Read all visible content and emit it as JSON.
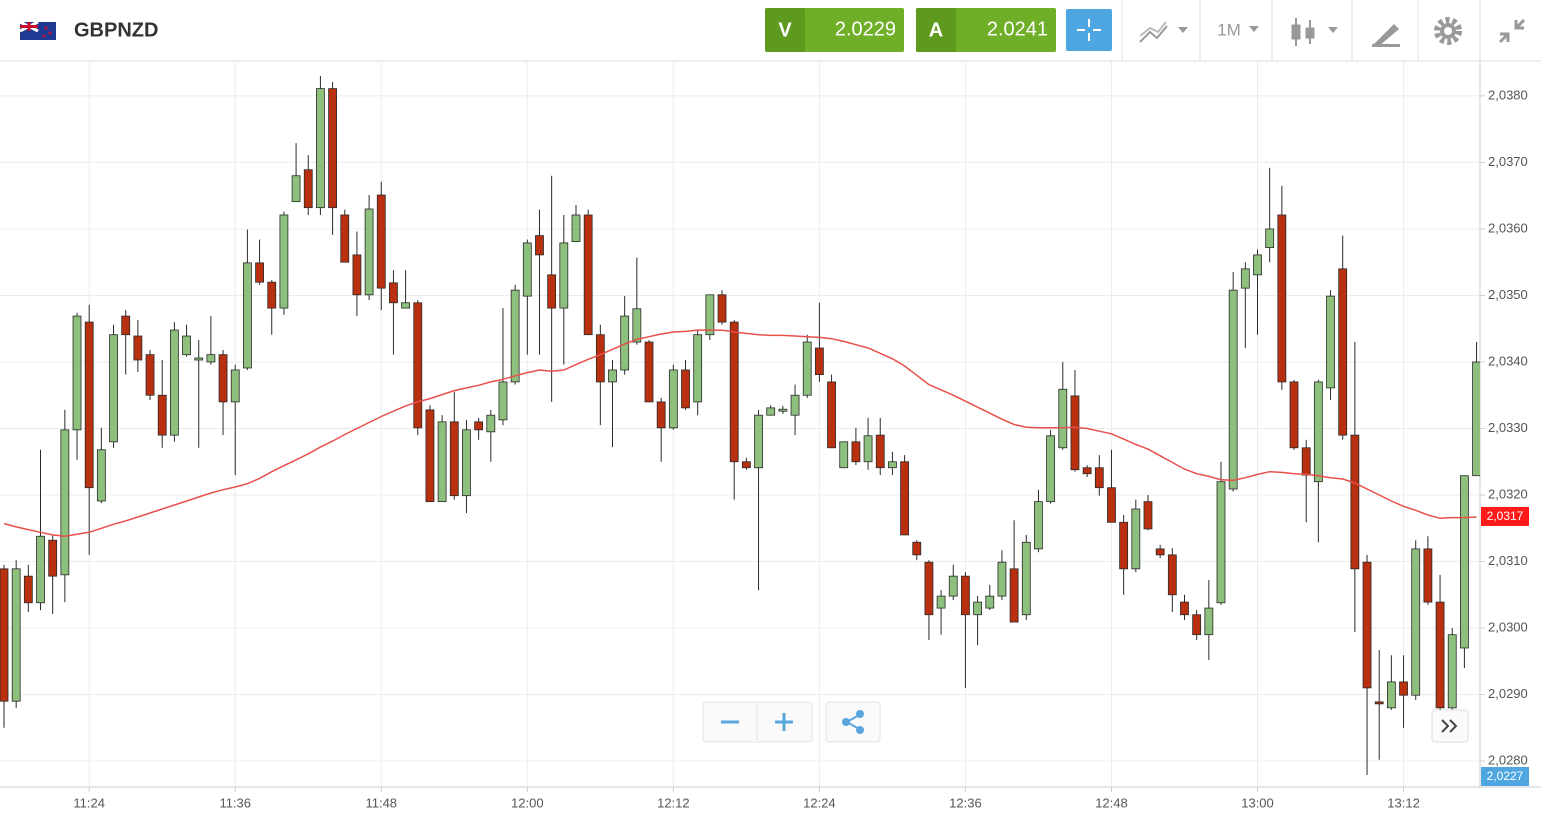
{
  "header": {
    "symbol": "GBPNZD",
    "sell_label": "V",
    "sell_price": "2.0229",
    "buy_label": "A",
    "buy_price": "2.0241",
    "timeframe": "1M"
  },
  "chart_data": {
    "type": "candlestick",
    "categories": [
      null,
      null,
      null,
      null,
      null,
      null,
      null,
      "11:24",
      null,
      null,
      null,
      null,
      null,
      null,
      null,
      null,
      null,
      null,
      null,
      "11:36",
      null,
      null,
      null,
      null,
      null,
      null,
      null,
      null,
      null,
      null,
      null,
      "11:48",
      null,
      null,
      null,
      null,
      null,
      null,
      null,
      null,
      null,
      null,
      null,
      "12:00",
      null,
      null,
      null,
      null,
      null,
      null,
      null,
      null,
      null,
      null,
      null,
      "12:12",
      null,
      null,
      null,
      null,
      null,
      null,
      null,
      null,
      null,
      null,
      null,
      "12:24",
      null,
      null,
      null,
      null,
      null,
      null,
      null,
      null,
      null,
      null,
      null,
      "12:36",
      null,
      null,
      null,
      null,
      null,
      null,
      null,
      null,
      null,
      null,
      null,
      "12:48",
      null,
      null,
      null,
      null,
      null,
      null,
      null,
      null,
      null,
      null,
      null,
      "13:00",
      null,
      null,
      null,
      null,
      null,
      null,
      null,
      null,
      null,
      null,
      null,
      "13:12",
      null,
      null,
      null,
      null,
      null,
      null
    ],
    "open": [
      2.03089,
      2.0289,
      2.03078,
      2.03038,
      2.03132,
      2.0308,
      2.03298,
      2.0346,
      2.03191,
      2.0328,
      2.03469,
      2.03439,
      2.03411,
      2.0335,
      2.0329,
      2.03411,
      2.03403,
      2.034,
      2.03411,
      2.0334,
      2.03391,
      2.03549,
      2.0352,
      2.03481,
      2.03641,
      2.03689,
      2.03632,
      2.03811,
      2.03621,
      2.03561,
      2.03501,
      2.03651,
      2.03519,
      2.03481,
      2.03489,
      2.03328,
      2.0319,
      2.0331,
      2.03199,
      2.0331,
      2.03295,
      2.03313,
      2.0337,
      2.03499,
      2.0359,
      2.03531,
      2.03481,
      2.03581,
      2.03621,
      2.03441,
      2.0337,
      2.03388,
      2.0343,
      2.0343,
      2.0334,
      2.03301,
      2.03388,
      2.0334,
      2.03441,
      2.03501,
      2.0346,
      2.0325,
      2.03241,
      2.0332,
      2.03326,
      2.0332,
      2.0335,
      2.03421,
      2.0337,
      2.03241,
      2.0328,
      2.0325,
      2.0329,
      2.03241,
      2.0325,
      2.03129,
      2.03099,
      2.0303,
      2.03048,
      2.03078,
      2.0302,
      2.0303,
      2.03048,
      2.03089,
      2.0302,
      2.03119,
      2.0319,
      2.03271,
      2.03349,
      2.03241,
      2.03241,
      2.03211,
      2.03159,
      2.03089,
      2.0319,
      2.03119,
      2.0311,
      2.03039,
      2.0302,
      2.0299,
      2.03038,
      2.03209,
      2.03511,
      2.03531,
      2.03572,
      2.03621,
      2.0337,
      2.03271,
      2.0322,
      2.03361,
      2.0354,
      2.0329,
      2.03099,
      2.02889,
      2.0288,
      2.02919,
      2.02899,
      2.03119,
      2.03039,
      2.0288,
      2.0297,
      2.03229
    ],
    "high": [
      2.03095,
      2.03102,
      2.03095,
      2.03268,
      2.0314,
      2.03328,
      2.03474,
      2.03486,
      2.03301,
      2.03456,
      2.03478,
      2.03463,
      2.03418,
      2.03403,
      2.0346,
      2.03456,
      2.03433,
      2.03469,
      2.03418,
      2.03396,
      2.03599,
      2.03584,
      2.03523,
      2.03626,
      2.03729,
      2.03711,
      2.0383,
      2.03821,
      2.03629,
      2.03596,
      2.03651,
      2.03671,
      2.03538,
      2.03538,
      2.03493,
      2.03335,
      2.0332,
      2.03355,
      2.03313,
      2.03316,
      2.03328,
      2.03481,
      2.03516,
      2.03584,
      2.03629,
      2.0368,
      2.03621,
      2.03636,
      2.03629,
      2.03456,
      2.03403,
      2.03499,
      2.03557,
      2.03433,
      2.03346,
      2.03396,
      2.03403,
      2.03448,
      2.03501,
      2.03508,
      2.03463,
      2.03256,
      2.03328,
      2.03335,
      2.03334,
      2.03366,
      2.03441,
      2.03489,
      2.03381,
      2.0328,
      2.03301,
      2.03316,
      2.03316,
      2.03265,
      2.0326,
      2.03132,
      2.03102,
      2.03057,
      2.03095,
      2.03084,
      2.03048,
      2.03065,
      2.03117,
      2.03162,
      2.0314,
      2.03208,
      2.03298,
      2.034,
      2.03388,
      2.03245,
      2.0326,
      2.03268,
      2.0317,
      2.03193,
      2.032,
      2.03125,
      2.0312,
      2.0305,
      2.03027,
      2.03072,
      2.0325,
      2.03535,
      2.0355,
      2.03569,
      2.03692,
      2.03665,
      2.03373,
      2.03283,
      2.03373,
      2.03508,
      2.0359,
      2.0343,
      2.0311,
      2.02967,
      2.02959,
      2.02959,
      2.03132,
      2.03138,
      2.0308,
      2.03,
      2.03229,
      2.0343
    ],
    "low": [
      2.0285,
      2.0288,
      2.03024,
      2.03027,
      2.03021,
      2.03039,
      2.03253,
      2.0311,
      2.03188,
      2.03271,
      2.03381,
      2.03385,
      2.03343,
      2.03271,
      2.0328,
      2.03408,
      2.03271,
      2.03396,
      2.0329,
      2.0323,
      2.03388,
      2.03516,
      2.03441,
      2.03471,
      2.03641,
      2.03621,
      2.03621,
      2.03591,
      2.0355,
      2.03469,
      2.03493,
      2.03478,
      2.03411,
      2.03481,
      2.0329,
      2.0319,
      2.0319,
      2.03193,
      2.03173,
      2.03283,
      2.0325,
      2.03305,
      2.03366,
      2.03411,
      2.03411,
      2.0334,
      2.03396,
      2.03581,
      2.03441,
      2.03305,
      2.03272,
      2.03381,
      2.03426,
      2.0334,
      2.0325,
      2.03298,
      2.03328,
      2.0332,
      2.03433,
      2.03456,
      2.03193,
      2.03238,
      2.03057,
      2.0332,
      2.03322,
      2.0329,
      2.03346,
      2.0337,
      2.03271,
      2.03241,
      2.03245,
      2.03238,
      2.0323,
      2.0323,
      2.0314,
      2.03102,
      2.02982,
      2.0299,
      2.03042,
      2.0291,
      2.02974,
      2.03027,
      2.03042,
      2.03009,
      2.03012,
      2.03114,
      2.03187,
      2.03268,
      2.03235,
      2.03227,
      2.03199,
      2.03159,
      2.0305,
      2.03084,
      2.03147,
      2.03105,
      2.03024,
      2.03012,
      2.02982,
      2.02952,
      2.03035,
      2.03205,
      2.03421,
      2.03441,
      2.0355,
      2.03358,
      2.03268,
      2.03159,
      2.03129,
      2.03343,
      2.03283,
      2.02994,
      2.02779,
      2.02802,
      2.02877,
      2.0285,
      2.02892,
      2.03035,
      2.02874,
      2.02874,
      2.0294,
      2.03229
    ],
    "close": [
      2.0289,
      2.03089,
      2.03038,
      2.03138,
      2.03078,
      2.03298,
      2.03469,
      2.03211,
      2.03268,
      2.03441,
      2.03441,
      2.03403,
      2.0335,
      2.0329,
      2.03448,
      2.03439,
      2.03406,
      2.03411,
      2.0334,
      2.03388,
      2.03549,
      2.0352,
      2.03481,
      2.03621,
      2.0368,
      2.03632,
      2.03811,
      2.03632,
      2.0355,
      2.03501,
      2.0363,
      2.03511,
      2.03489,
      2.03489,
      2.03301,
      2.0319,
      2.0331,
      2.03199,
      2.03298,
      2.03298,
      2.0332,
      2.0337,
      2.03508,
      2.03579,
      2.03561,
      2.03481,
      2.03579,
      2.03621,
      2.03441,
      2.0337,
      2.03388,
      2.03469,
      2.0348,
      2.0334,
      2.03301,
      2.03388,
      2.03331,
      2.03441,
      2.03501,
      2.0346,
      2.0325,
      2.03241,
      2.0332,
      2.03331,
      2.03329,
      2.0335,
      2.0343,
      2.03381,
      2.03271,
      2.0328,
      2.0325,
      2.03289,
      2.03241,
      2.0325,
      2.0314,
      2.0311,
      2.0302,
      2.03048,
      2.03078,
      2.0302,
      2.03039,
      2.03048,
      2.03099,
      2.03009,
      2.03129,
      2.0319,
      2.03289,
      2.03359,
      2.03238,
      2.03232,
      2.03211,
      2.03159,
      2.03089,
      2.03179,
      2.03149,
      2.0311,
      2.0305,
      2.0302,
      2.0299,
      2.0303,
      2.0322,
      2.03508,
      2.0354,
      2.03561,
      2.036,
      2.0337,
      2.03271,
      2.0323,
      2.0337,
      2.03499,
      2.0329,
      2.03089,
      2.0291,
      2.02886,
      2.02919,
      2.02899,
      2.03119,
      2.03039,
      2.0288,
      2.0299,
      2.03229,
      2.034
    ],
    "up_color": "#8dbf7d",
    "down_color": "#b8300f",
    "border_color": "#2a2a2a",
    "ma": {
      "color": "#e8504a",
      "values": [
        2.03157,
        2.03152,
        2.03148,
        2.03144,
        2.0314,
        2.03138,
        2.03141,
        2.03144,
        2.0315,
        2.03156,
        2.03161,
        2.03167,
        2.03173,
        2.03179,
        2.03185,
        2.03191,
        2.03197,
        2.03203,
        2.03208,
        2.03212,
        2.03217,
        2.03225,
        2.03235,
        2.03244,
        2.03253,
        2.03262,
        2.03272,
        2.03281,
        2.03291,
        2.033,
        2.03309,
        2.03318,
        2.03326,
        2.03334,
        2.0334,
        2.03345,
        2.03351,
        2.03357,
        2.03361,
        2.03365,
        2.0337,
        2.03374,
        2.03379,
        2.03384,
        2.03388,
        2.03386,
        2.03388,
        2.03396,
        2.03404,
        2.03411,
        2.03419,
        2.03427,
        2.03434,
        2.03438,
        2.03442,
        2.03445,
        2.03446,
        2.03448,
        2.03448,
        2.03448,
        2.03445,
        2.03443,
        2.03441,
        2.0344,
        2.0344,
        2.03439,
        2.03438,
        2.03437,
        2.03435,
        2.03431,
        2.03426,
        2.03421,
        2.03413,
        2.03405,
        2.03394,
        2.0338,
        2.03366,
        2.03358,
        2.0335,
        2.03341,
        2.03332,
        2.03323,
        2.03314,
        2.03306,
        2.03302,
        2.03301,
        2.03301,
        2.03301,
        2.03302,
        2.033,
        2.03296,
        2.03292,
        2.03284,
        2.03276,
        2.03269,
        2.03259,
        2.03249,
        2.03239,
        2.03232,
        2.03228,
        2.03223,
        2.03222,
        2.03226,
        2.03231,
        2.03235,
        2.03234,
        2.03232,
        2.03231,
        2.03229,
        2.03226,
        2.03224,
        2.03218,
        2.03209,
        2.032,
        2.03191,
        2.03183,
        2.03177,
        2.0317,
        2.03165,
        2.03166,
        2.03166,
        2.03167
      ]
    },
    "ma_label": "2,0317",
    "price_tag": "2,0227",
    "ylim": [
      2.02761,
      2.03851
    ],
    "yticks": [
      {
        "value": 2.028,
        "label": "2,0280"
      },
      {
        "value": 2.029,
        "label": "2,0290"
      },
      {
        "value": 2.03,
        "label": "2,0300"
      },
      {
        "value": 2.031,
        "label": "2,0310"
      },
      {
        "value": 2.032,
        "label": "2,0320"
      },
      {
        "value": 2.033,
        "label": "2,0330"
      },
      {
        "value": 2.034,
        "label": "2,0340"
      },
      {
        "value": 2.035,
        "label": "2,0350"
      },
      {
        "value": 2.036,
        "label": "2,0360"
      },
      {
        "value": 2.037,
        "label": "2,0370"
      },
      {
        "value": 2.038,
        "label": "2,0380"
      }
    ],
    "grid": true
  }
}
